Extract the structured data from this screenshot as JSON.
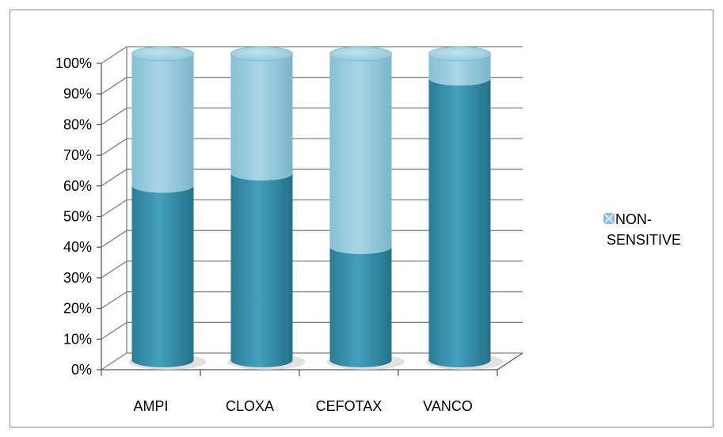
{
  "chart_data": {
    "type": "bar",
    "stacked": true,
    "percent_stacked": true,
    "style": "3d-cylinder",
    "categories": [
      "AMPI",
      "CLOXA",
      "CEFOTAX",
      "VANCO"
    ],
    "series": [
      {
        "values": [
          57,
          61,
          37,
          92
        ]
      },
      {
        "name": "NON-SENSITIVE",
        "values": [
          43,
          39,
          63,
          8
        ]
      }
    ],
    "ylim": [
      0,
      100
    ],
    "y_ticks": [
      "0%",
      "10%",
      "20%",
      "30%",
      "40%",
      "50%",
      "60%",
      "70%",
      "80%",
      "90%",
      "100%"
    ],
    "grid": true,
    "legend_position": "right",
    "legend": [
      {
        "label_lines": [
          "NON-",
          "SENSITIVE"
        ]
      }
    ],
    "colors": {
      "lower_series": "#3A93AE",
      "upper_series": "#99CCDF",
      "gridline": "#808080",
      "axis": "#595959"
    }
  }
}
